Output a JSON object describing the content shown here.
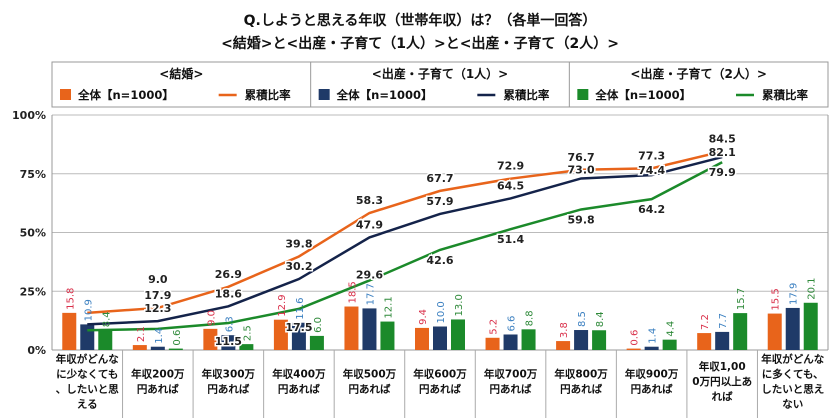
{
  "chart_data": {
    "type": "bar+line",
    "title": "Q.しようと思える年収（世帯年収）は？（各単一回答）",
    "subtitle": "<結婚>と<出産・子育て（1人）>と<出産・子育て（2人）>",
    "categories": [
      "年収がどんなに少なくても、したいと思える",
      "年収200万円あれば",
      "年収300万円あれば",
      "年収400万円あれば",
      "年収500万円あれば",
      "年収600万円あれば",
      "年収700万円あれば",
      "年収800万円あれば",
      "年収900万円あれば",
      "年収1,000万円以上あれば",
      "年収がどんなに多くても、したいと思えない"
    ],
    "yticks": [
      "0%",
      "25%",
      "50%",
      "75%",
      "100%"
    ],
    "ylim": [
      0,
      100
    ],
    "groups": [
      {
        "name": "<結婚>",
        "bar_name": "全体【n=1000】",
        "line_name": "累積比率",
        "bar_color": "#e8641b",
        "line_color": "#e8641b",
        "label_color": "#d9304a",
        "bars": [
          15.8,
          2.1,
          9.0,
          12.9,
          18.5,
          9.4,
          5.2,
          3.8,
          0.6,
          7.2,
          15.5
        ],
        "cumulative": [
          15.8,
          17.9,
          26.9,
          39.8,
          58.3,
          67.7,
          72.9,
          76.7,
          77.3,
          84.5
        ]
      },
      {
        "name": "<出産・子育て（1人）>",
        "bar_name": "全体【n=1000】",
        "line_name": "累積比率",
        "bar_color": "#1f3a68",
        "line_color": "#14234a",
        "label_color": "#3a7fc0",
        "bars": [
          10.9,
          1.4,
          6.3,
          11.6,
          17.7,
          10.0,
          6.6,
          8.5,
          1.4,
          7.7,
          17.9
        ],
        "cumulative": [
          10.9,
          12.3,
          18.6,
          30.2,
          47.9,
          57.9,
          64.5,
          73.0,
          74.4,
          82.1
        ]
      },
      {
        "name": "<出産・子育て（2人）>",
        "bar_name": "全体【n=1000】",
        "line_name": "累積比率",
        "bar_color": "#1b8a2a",
        "line_color": "#1b8a2a",
        "label_color": "#2f8a3a",
        "bars": [
          8.4,
          0.6,
          2.5,
          6.0,
          12.1,
          13.0,
          8.8,
          8.4,
          4.4,
          15.7,
          20.1
        ],
        "cumulative": [
          8.4,
          9.0,
          11.5,
          17.5,
          29.6,
          42.6,
          51.4,
          59.8,
          64.2,
          79.9
        ]
      }
    ],
    "grid": true,
    "legend": "top"
  }
}
